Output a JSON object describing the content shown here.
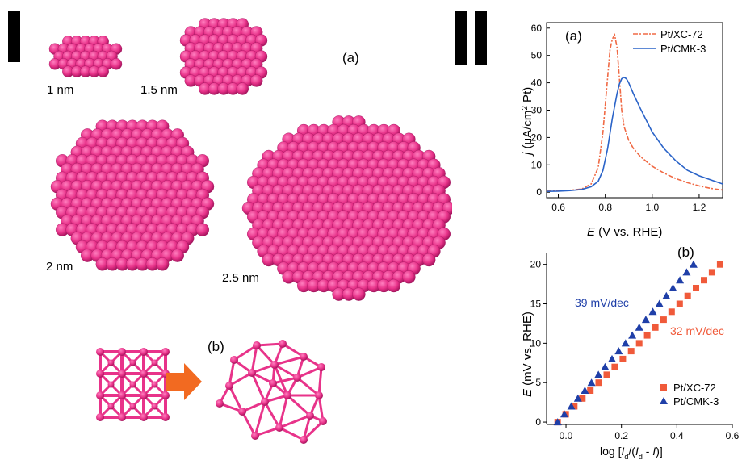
{
  "section_left": {
    "panel_a": "(a)",
    "panel_b": "(b)",
    "clusters": [
      {
        "label": "1 nm"
      },
      {
        "label": "1.5 nm"
      },
      {
        "label": "2 nm"
      },
      {
        "label": "2.5 nm"
      }
    ]
  },
  "colors": {
    "pt_sphere": "#e8338a",
    "arrow": "#f26a21",
    "xc72": "#f06a45",
    "cmk3": "#2a63c8",
    "ann_blue": "#1f3fa8",
    "ann_red": "#f05a3a"
  },
  "chart_data": [
    {
      "type": "line",
      "panel_label": "(a)",
      "xlabel": "E (V vs. RHE)",
      "ylabel": "j (μA/cm² Pt)",
      "xlim": [
        0.55,
        1.3
      ],
      "ylim": [
        -2,
        62
      ],
      "x_ticks": [
        "0.6",
        "0.8",
        "1.0",
        "1.2"
      ],
      "y_ticks": [
        "0",
        "10",
        "20",
        "30",
        "40",
        "50",
        "60"
      ],
      "legend_position": "top-right",
      "series": [
        {
          "name": "Pt/XC-72",
          "style": "dash-dot",
          "color": "#f06a45",
          "x": [
            0.55,
            0.6,
            0.65,
            0.7,
            0.74,
            0.77,
            0.79,
            0.81,
            0.82,
            0.83,
            0.84,
            0.85,
            0.86,
            0.87,
            0.88,
            0.9,
            0.92,
            0.95,
            1.0,
            1.05,
            1.1,
            1.15,
            1.2,
            1.25,
            1.3
          ],
          "y": [
            0.4,
            0.5,
            0.7,
            1.2,
            3,
            9,
            22,
            42,
            52,
            56,
            57.5,
            53,
            42,
            30,
            24,
            19,
            16,
            13,
            9.5,
            7,
            5,
            3.5,
            2.3,
            1.4,
            0.8
          ]
        },
        {
          "name": "Pt/CMK-3",
          "style": "solid",
          "color": "#2a63c8",
          "x": [
            0.55,
            0.6,
            0.65,
            0.7,
            0.74,
            0.77,
            0.79,
            0.81,
            0.83,
            0.85,
            0.86,
            0.87,
            0.88,
            0.89,
            0.9,
            0.92,
            0.95,
            1.0,
            1.05,
            1.1,
            1.15,
            1.2,
            1.25,
            1.3
          ],
          "y": [
            0.3,
            0.4,
            0.6,
            1,
            2,
            4,
            8,
            16,
            27,
            36,
            39.5,
            41.5,
            42,
            41.5,
            40,
            36,
            30.5,
            22,
            16,
            11.5,
            8,
            6,
            4.5,
            3
          ]
        }
      ]
    },
    {
      "type": "scatter",
      "panel_label": "(b)",
      "xlabel": "log [Id/(Id-I)]",
      "ylabel": "E (mV vs. RHE)",
      "xlim": [
        -0.07,
        0.6
      ],
      "ylim": [
        -0.3,
        21.5
      ],
      "x_ticks": [
        "0.0",
        "0.2",
        "0.4",
        "0.6"
      ],
      "y_ticks": [
        "0",
        "5",
        "10",
        "15",
        "20"
      ],
      "legend_position": "bottom-right",
      "annotations": [
        {
          "text": "39 mV/dec",
          "color": "#1f3fa8"
        },
        {
          "text": "32 mV/dec",
          "color": "#f05a3a"
        }
      ],
      "series": [
        {
          "name": "Pt/XC-72",
          "marker": "square",
          "color": "#f05a3a",
          "x": [
            -0.03,
            -0.001,
            0.03,
            0.059,
            0.088,
            0.118,
            0.147,
            0.176,
            0.205,
            0.235,
            0.264,
            0.293,
            0.322,
            0.352,
            0.381,
            0.41,
            0.439,
            0.469,
            0.498,
            0.527,
            0.556
          ],
          "y": [
            0,
            1,
            2,
            3,
            4,
            5,
            6,
            7,
            8,
            9,
            10,
            11,
            12,
            13,
            14,
            15,
            16,
            17,
            18,
            19,
            20
          ]
        },
        {
          "name": "Pt/CMK-3",
          "marker": "triangle",
          "color": "#1f3fa8",
          "x": [
            -0.03,
            -0.006,
            0.019,
            0.043,
            0.068,
            0.092,
            0.117,
            0.141,
            0.166,
            0.19,
            0.215,
            0.239,
            0.264,
            0.288,
            0.313,
            0.337,
            0.362,
            0.386,
            0.411,
            0.435,
            0.46
          ],
          "y": [
            0,
            1,
            2,
            3,
            4,
            5,
            6,
            7,
            8,
            9,
            10,
            11,
            12,
            13,
            14,
            15,
            16,
            17,
            18,
            19,
            20
          ]
        }
      ]
    }
  ]
}
